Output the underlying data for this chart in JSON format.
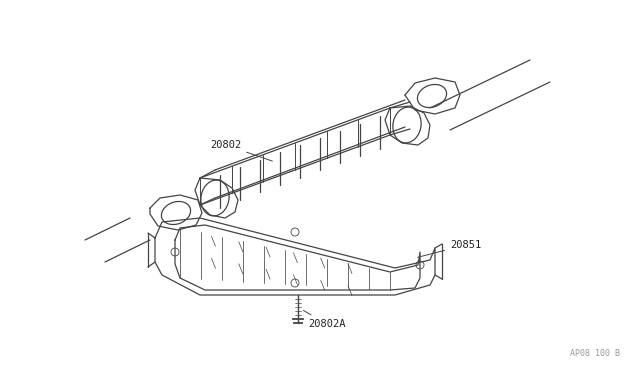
{
  "bg_color": "#ffffff",
  "line_color": "#444444",
  "label_color": "#222222",
  "watermark_color": "#999999",
  "watermark_text": "AP08 100 B",
  "figsize": [
    6.4,
    3.72
  ],
  "dpi": 100,
  "label_fontsize": 7.5
}
